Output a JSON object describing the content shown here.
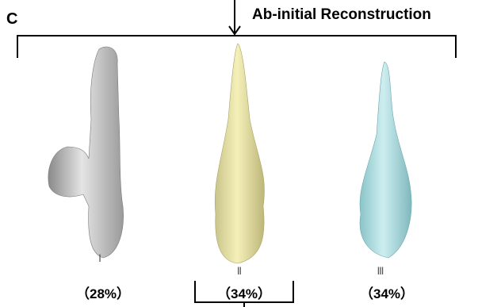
{
  "panel_label": "C",
  "title": "Ab-initial Reconstruction",
  "classes": [
    {
      "numeral": "Ⅰ",
      "percent": "（28%）"
    },
    {
      "numeral": "Ⅱ",
      "percent": "（34%）"
    },
    {
      "numeral": "Ⅲ",
      "percent": "（34%）"
    }
  ]
}
